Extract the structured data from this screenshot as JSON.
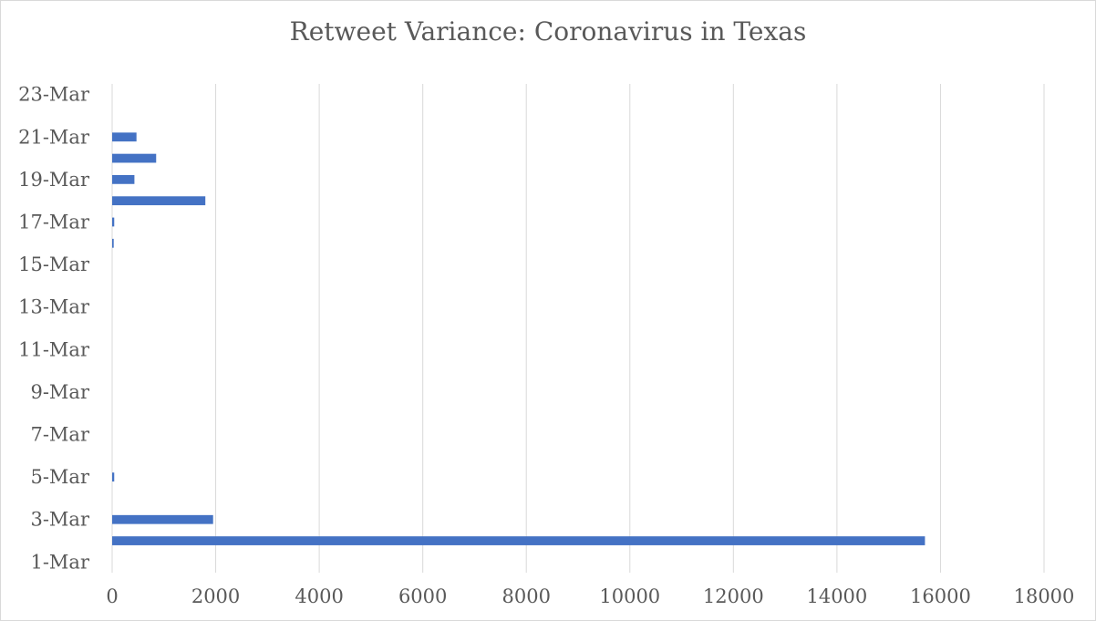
{
  "chart_data": {
    "type": "bar",
    "orientation": "horizontal",
    "title": "Retweet Variance: Coronavirus in Texas",
    "xlabel": "",
    "ylabel": "",
    "xlim": [
      0,
      18000
    ],
    "x_ticks": [
      0,
      2000,
      4000,
      6000,
      8000,
      10000,
      12000,
      14000,
      16000,
      18000
    ],
    "grid": "vertical",
    "legend": "none",
    "bar_color": "#4472c4",
    "categories": [
      "1-Mar",
      "2-Mar",
      "3-Mar",
      "4-Mar",
      "5-Mar",
      "6-Mar",
      "7-Mar",
      "8-Mar",
      "9-Mar",
      "10-Mar",
      "11-Mar",
      "12-Mar",
      "13-Mar",
      "14-Mar",
      "15-Mar",
      "16-Mar",
      "17-Mar",
      "18-Mar",
      "19-Mar",
      "20-Mar",
      "21-Mar",
      "22-Mar",
      "23-Mar"
    ],
    "category_tick_labels": [
      "1-Mar",
      "3-Mar",
      "5-Mar",
      "7-Mar",
      "9-Mar",
      "11-Mar",
      "13-Mar",
      "15-Mar",
      "17-Mar",
      "19-Mar",
      "21-Mar",
      "23-Mar"
    ],
    "values": [
      0,
      15700,
      1950,
      0,
      40,
      0,
      0,
      0,
      0,
      0,
      0,
      0,
      0,
      0,
      0,
      30,
      40,
      1800,
      430,
      850,
      470,
      0,
      0
    ]
  }
}
